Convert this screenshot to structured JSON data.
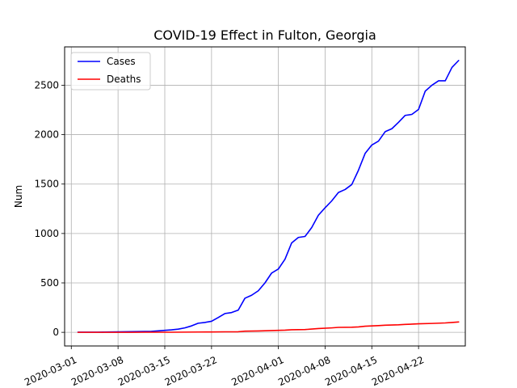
{
  "chart_data": {
    "type": "line",
    "title": "COVID-19 Effect in Fulton, Georgia",
    "xlabel": "",
    "ylabel": "Num",
    "x_axis_type": "date",
    "xlim": [
      "2020-02-29",
      "2020-04-29"
    ],
    "ylim": [
      -138,
      2888
    ],
    "x_ticks": [
      "2020-03-01",
      "2020-03-08",
      "2020-03-15",
      "2020-03-22",
      "2020-04-01",
      "2020-04-08",
      "2020-04-15",
      "2020-04-22"
    ],
    "y_ticks": [
      0,
      500,
      1000,
      1500,
      2000,
      2500
    ],
    "grid": true,
    "legend_position": "top-left",
    "series": [
      {
        "name": "Cases",
        "color": "#0000ff",
        "points": [
          [
            "2020-03-02",
            2
          ],
          [
            "2020-03-03",
            2
          ],
          [
            "2020-03-04",
            2
          ],
          [
            "2020-03-05",
            2
          ],
          [
            "2020-03-06",
            3
          ],
          [
            "2020-03-07",
            4
          ],
          [
            "2020-03-08",
            5
          ],
          [
            "2020-03-09",
            6
          ],
          [
            "2020-03-10",
            7
          ],
          [
            "2020-03-11",
            8
          ],
          [
            "2020-03-12",
            9
          ],
          [
            "2020-03-13",
            10
          ],
          [
            "2020-03-14",
            15
          ],
          [
            "2020-03-15",
            20
          ],
          [
            "2020-03-16",
            25
          ],
          [
            "2020-03-17",
            32
          ],
          [
            "2020-03-18",
            45
          ],
          [
            "2020-03-19",
            65
          ],
          [
            "2020-03-20",
            92
          ],
          [
            "2020-03-21",
            100
          ],
          [
            "2020-03-22",
            112
          ],
          [
            "2020-03-23",
            150
          ],
          [
            "2020-03-24",
            190
          ],
          [
            "2020-03-25",
            200
          ],
          [
            "2020-03-26",
            225
          ],
          [
            "2020-03-27",
            345
          ],
          [
            "2020-03-28",
            375
          ],
          [
            "2020-03-29",
            420
          ],
          [
            "2020-03-30",
            500
          ],
          [
            "2020-03-31",
            600
          ],
          [
            "2020-04-01",
            640
          ],
          [
            "2020-04-02",
            740
          ],
          [
            "2020-04-03",
            905
          ],
          [
            "2020-04-04",
            960
          ],
          [
            "2020-04-05",
            970
          ],
          [
            "2020-04-06",
            1060
          ],
          [
            "2020-04-07",
            1185
          ],
          [
            "2020-04-08",
            1260
          ],
          [
            "2020-04-09",
            1330
          ],
          [
            "2020-04-10",
            1415
          ],
          [
            "2020-04-11",
            1445
          ],
          [
            "2020-04-12",
            1495
          ],
          [
            "2020-04-13",
            1640
          ],
          [
            "2020-04-14",
            1810
          ],
          [
            "2020-04-15",
            1895
          ],
          [
            "2020-04-16",
            1935
          ],
          [
            "2020-04-17",
            2030
          ],
          [
            "2020-04-18",
            2060
          ],
          [
            "2020-04-19",
            2125
          ],
          [
            "2020-04-20",
            2195
          ],
          [
            "2020-04-21",
            2205
          ],
          [
            "2020-04-22",
            2255
          ],
          [
            "2020-04-23",
            2440
          ],
          [
            "2020-04-24",
            2500
          ],
          [
            "2020-04-25",
            2545
          ],
          [
            "2020-04-26",
            2545
          ],
          [
            "2020-04-27",
            2680
          ],
          [
            "2020-04-28",
            2750
          ]
        ]
      },
      {
        "name": "Deaths",
        "color": "#ff0000",
        "points": [
          [
            "2020-03-02",
            0
          ],
          [
            "2020-03-04",
            0
          ],
          [
            "2020-03-06",
            0
          ],
          [
            "2020-03-08",
            0
          ],
          [
            "2020-03-10",
            0
          ],
          [
            "2020-03-12",
            1
          ],
          [
            "2020-03-14",
            1
          ],
          [
            "2020-03-16",
            1
          ],
          [
            "2020-03-18",
            2
          ],
          [
            "2020-03-20",
            3
          ],
          [
            "2020-03-22",
            4
          ],
          [
            "2020-03-24",
            5
          ],
          [
            "2020-03-26",
            6
          ],
          [
            "2020-03-27",
            12
          ],
          [
            "2020-03-29",
            14
          ],
          [
            "2020-03-31",
            18
          ],
          [
            "2020-04-02",
            22
          ],
          [
            "2020-04-03",
            26
          ],
          [
            "2020-04-05",
            28
          ],
          [
            "2020-04-07",
            38
          ],
          [
            "2020-04-09",
            45
          ],
          [
            "2020-04-10",
            50
          ],
          [
            "2020-04-12",
            52
          ],
          [
            "2020-04-13",
            55
          ],
          [
            "2020-04-14",
            62
          ],
          [
            "2020-04-16",
            68
          ],
          [
            "2020-04-17",
            72
          ],
          [
            "2020-04-19",
            76
          ],
          [
            "2020-04-20",
            80
          ],
          [
            "2020-04-22",
            86
          ],
          [
            "2020-04-24",
            90
          ],
          [
            "2020-04-26",
            95
          ],
          [
            "2020-04-27",
            100
          ],
          [
            "2020-04-28",
            105
          ]
        ]
      }
    ]
  }
}
